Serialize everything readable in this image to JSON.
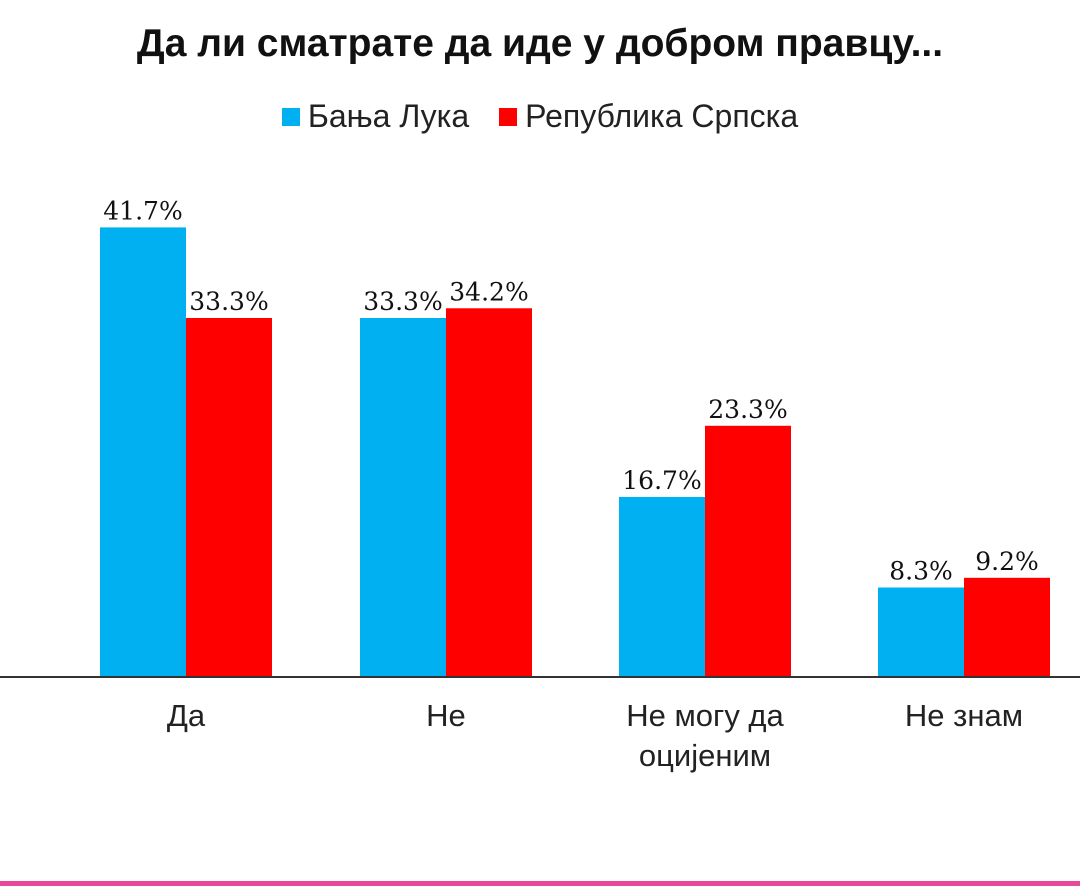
{
  "chart_data": {
    "type": "bar",
    "title": "Да ли сматрате да иде у добром правцу...",
    "categories": [
      "Да",
      "Не",
      "Не могу да оцијеним",
      "Не знам"
    ],
    "category_lines": [
      [
        "Да"
      ],
      [
        "Не"
      ],
      [
        "Не могу да",
        "оцијеним"
      ],
      [
        "Не знам"
      ]
    ],
    "series": [
      {
        "name": "Бања Лука",
        "color": "#00b0f0",
        "values": [
          41.7,
          33.3,
          16.7,
          8.3
        ],
        "labels": [
          "41.7%",
          "33.3%",
          "16.7%",
          "8.3%"
        ]
      },
      {
        "name": "Република Српска",
        "color": "#ff0000",
        "values": [
          33.3,
          34.2,
          23.3,
          9.2
        ],
        "labels": [
          "33.3%",
          "34.2%",
          "23.3%",
          "9.2%"
        ]
      }
    ],
    "ylim": [
      0,
      45
    ],
    "grid": false,
    "legend_position": "top-center",
    "xlabel": "",
    "ylabel": ""
  },
  "accent_color": "#e8479a"
}
